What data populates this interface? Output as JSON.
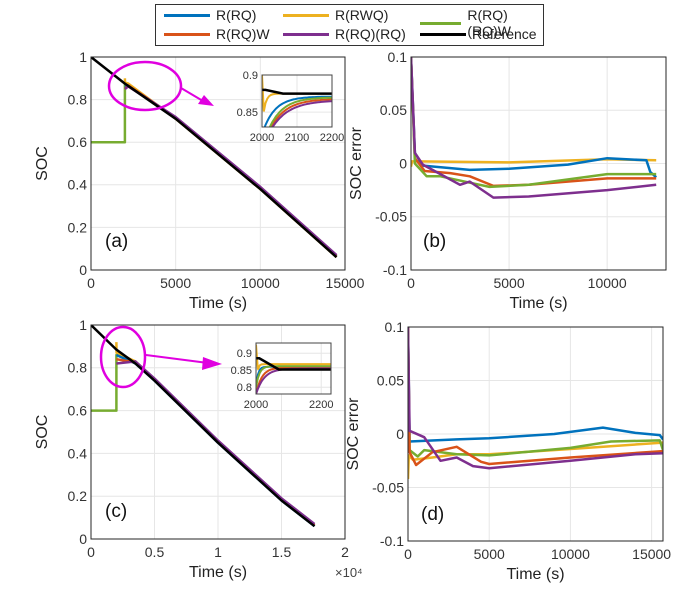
{
  "legend": {
    "items": [
      {
        "label": "R(RQ)",
        "color": "#0072BD"
      },
      {
        "label": "R(RWQ)",
        "color": "#EDB120"
      },
      {
        "label": "R(RQ)(RQ)W",
        "color": "#77AC30"
      },
      {
        "label": "R(RQ)W",
        "color": "#D95319"
      },
      {
        "label": "R(RQ)(RQ)",
        "color": "#7E2F8E"
      },
      {
        "label": "Reference",
        "color": "#000000"
      }
    ]
  },
  "annotation_color": "#E000E0",
  "chart_data": [
    {
      "id": "a",
      "type": "line",
      "panel_label": "(a)",
      "xlabel": "Time (s)",
      "ylabel": "SOC",
      "xlim": [
        0,
        15000
      ],
      "ylim": [
        0,
        1
      ],
      "xticks": [
        0,
        5000,
        10000,
        15000
      ],
      "xtick_labels": [
        "0",
        "5000",
        "10000",
        "15000"
      ],
      "yticks": [
        0,
        0.2,
        0.4,
        0.6,
        0.8,
        1
      ],
      "ytick_labels": [
        "0",
        "0.2",
        "0.4",
        "0.6",
        "0.8",
        "1"
      ],
      "grid": true,
      "series": [
        {
          "name": "Reference",
          "x": [
            0,
            2000,
            5000,
            10000,
            14500
          ],
          "y": [
            1.0,
            0.875,
            0.71,
            0.38,
            0.06
          ]
        },
        {
          "name": "R(RQ)(RQ)W",
          "x": [
            0,
            2000,
            2001,
            2200,
            5000,
            10000,
            14500
          ],
          "y": [
            0.6,
            0.6,
            0.87,
            0.865,
            0.715,
            0.385,
            0.065
          ]
        },
        {
          "name": "R(RQ)",
          "x": [
            2000,
            2200,
            5000,
            10000,
            14500
          ],
          "y": [
            0.86,
            0.866,
            0.714,
            0.384,
            0.064
          ]
        },
        {
          "name": "R(RWQ)",
          "x": [
            2000,
            2010,
            2200,
            5000,
            10000,
            14500
          ],
          "y": [
            0.9,
            0.88,
            0.875,
            0.71,
            0.38,
            0.06
          ]
        },
        {
          "name": "R(RQ)W",
          "x": [
            2000,
            2200,
            5000,
            10000,
            14500
          ],
          "y": [
            0.85,
            0.866,
            0.716,
            0.386,
            0.066
          ]
        },
        {
          "name": "R(RQ)(RQ)",
          "x": [
            2000,
            2200,
            5000,
            10000,
            14500
          ],
          "y": [
            0.85,
            0.862,
            0.718,
            0.39,
            0.07
          ]
        }
      ],
      "inset": {
        "xlim": [
          2000,
          2200
        ],
        "ylim": [
          0.83,
          0.9
        ],
        "xticks": [
          2000,
          2100,
          2200
        ],
        "xtick_labels": [
          "2000",
          "2100",
          "2200"
        ],
        "yticks": [
          0.85,
          0.9
        ],
        "ytick_labels": [
          "0.85",
          "0.9"
        ]
      }
    },
    {
      "id": "b",
      "type": "line",
      "panel_label": "(b)",
      "xlabel": "Time (s)",
      "ylabel": "SOC error",
      "xlim": [
        0,
        13000
      ],
      "ylim": [
        -0.1,
        0.1
      ],
      "xticks": [
        0,
        5000,
        10000
      ],
      "xtick_labels": [
        "0",
        "5000",
        "10000"
      ],
      "yticks": [
        -0.1,
        -0.05,
        0,
        0.05,
        0.1
      ],
      "ytick_labels": [
        "-0.1",
        "-0.05",
        "0",
        "0.05",
        "0.1"
      ],
      "grid": true,
      "series": [
        {
          "name": "R(RWQ)",
          "x": [
            0,
            50,
            300,
            5000,
            10000,
            12500
          ],
          "y": [
            -0.003,
            0.002,
            0.002,
            0.001,
            0.004,
            0.003
          ]
        },
        {
          "name": "R(RQ)",
          "x": [
            0,
            200,
            600,
            3000,
            5000,
            8000,
            10000,
            12000,
            12200,
            12500
          ],
          "y": [
            0.1,
            0.01,
            -0.002,
            -0.006,
            -0.005,
            -0.001,
            0.005,
            0.003,
            -0.008,
            -0.013
          ]
        },
        {
          "name": "R(RQ)W",
          "x": [
            0,
            200,
            700,
            2000,
            3000,
            4200,
            6000,
            10000,
            12500
          ],
          "y": [
            0.1,
            0.005,
            -0.007,
            -0.009,
            -0.012,
            -0.021,
            -0.02,
            -0.014,
            -0.014
          ]
        },
        {
          "name": "R(RQ)(RQ)W",
          "x": [
            0,
            200,
            800,
            1500,
            3000,
            4000,
            6000,
            10000,
            12500
          ],
          "y": [
            0.1,
            0.0,
            -0.012,
            -0.012,
            -0.018,
            -0.022,
            -0.02,
            -0.01,
            -0.01
          ]
        },
        {
          "name": "R(RQ)(RQ)",
          "x": [
            0,
            200,
            600,
            1500,
            2500,
            3000,
            4200,
            6000,
            10000,
            12500
          ],
          "y": [
            0.1,
            0.01,
            -0.001,
            -0.01,
            -0.02,
            -0.017,
            -0.032,
            -0.031,
            -0.025,
            -0.02
          ]
        }
      ]
    },
    {
      "id": "c",
      "type": "line",
      "panel_label": "(c)",
      "xlabel": "Time (s)",
      "ylabel": "SOC",
      "x_exponent_label": "×10⁴",
      "xlim": [
        0,
        20000
      ],
      "ylim": [
        0,
        1
      ],
      "xticks": [
        0,
        5000,
        10000,
        15000,
        20000
      ],
      "xtick_labels": [
        "0",
        "0.5",
        "1",
        "1.5",
        "2"
      ],
      "yticks": [
        0,
        0.2,
        0.4,
        0.6,
        0.8,
        1
      ],
      "ytick_labels": [
        "0",
        "0.2",
        "0.4",
        "0.6",
        "0.8",
        "1"
      ],
      "grid": true,
      "series": [
        {
          "name": "Reference",
          "x": [
            0,
            2000,
            3500,
            5000,
            10000,
            15000,
            17600
          ],
          "y": [
            1.0,
            0.885,
            0.82,
            0.74,
            0.45,
            0.18,
            0.06
          ]
        },
        {
          "name": "R(RQ)(RQ)W",
          "x": [
            0,
            2000,
            2001,
            3500,
            5000,
            10000,
            15000,
            17600
          ],
          "y": [
            0.6,
            0.6,
            0.86,
            0.825,
            0.745,
            0.455,
            0.185,
            0.065
          ]
        },
        {
          "name": "R(RWQ)",
          "x": [
            2000,
            2010,
            3500,
            5000,
            10000,
            15000,
            17600
          ],
          "y": [
            0.92,
            0.87,
            0.83,
            0.745,
            0.455,
            0.185,
            0.065
          ]
        },
        {
          "name": "R(RQ)",
          "x": [
            2000,
            3500,
            5000,
            10000,
            15000,
            17600
          ],
          "y": [
            0.86,
            0.82,
            0.74,
            0.45,
            0.18,
            0.06
          ]
        },
        {
          "name": "R(RQ)W",
          "x": [
            2000,
            3500,
            5000,
            10000,
            15000,
            17600
          ],
          "y": [
            0.84,
            0.825,
            0.745,
            0.455,
            0.185,
            0.065
          ]
        },
        {
          "name": "R(RQ)(RQ)",
          "x": [
            2000,
            3500,
            5000,
            10000,
            15000,
            17600
          ],
          "y": [
            0.82,
            0.83,
            0.75,
            0.46,
            0.19,
            0.07
          ]
        }
      ],
      "inset": {
        "xlim": [
          2000,
          2230
        ],
        "ylim": [
          0.78,
          0.93
        ],
        "xticks": [
          2000,
          2200
        ],
        "xtick_labels": [
          "2000",
          "2200"
        ],
        "yticks": [
          0.8,
          0.85,
          0.9
        ],
        "ytick_labels": [
          "0.8",
          "0.85",
          "0.9"
        ]
      }
    },
    {
      "id": "d",
      "type": "line",
      "panel_label": "(d)",
      "xlabel": "Time (s)",
      "ylabel": "SOC error",
      "xlim": [
        0,
        15700
      ],
      "ylim": [
        -0.1,
        0.1
      ],
      "xticks": [
        0,
        5000,
        10000,
        15000
      ],
      "xtick_labels": [
        "0",
        "5000",
        "10000",
        "15000"
      ],
      "yticks": [
        -0.1,
        -0.05,
        0,
        0.05,
        0.1
      ],
      "ytick_labels": [
        "-0.1",
        "-0.05",
        "0",
        "0.05",
        "0.1"
      ],
      "grid": true,
      "series": [
        {
          "name": "R(RQ)",
          "x": [
            0,
            100,
            3000,
            5000,
            9000,
            12000,
            14000,
            15500,
            15700
          ],
          "y": [
            0.1,
            -0.007,
            -0.005,
            -0.004,
            0.0,
            0.006,
            0.001,
            -0.001,
            -0.005
          ]
        },
        {
          "name": "R(RWQ)",
          "x": [
            0,
            50,
            300,
            1500,
            3000,
            5000,
            10000,
            15700
          ],
          "y": [
            -0.042,
            -0.02,
            -0.024,
            -0.022,
            -0.019,
            -0.019,
            -0.014,
            -0.008
          ]
        },
        {
          "name": "R(RQ)(RQ)W",
          "x": [
            0,
            100,
            600,
            1000,
            3000,
            5000,
            10000,
            12500,
            15500,
            15700
          ],
          "y": [
            0.1,
            -0.015,
            -0.021,
            -0.015,
            -0.019,
            -0.02,
            -0.013,
            -0.007,
            -0.006,
            -0.015
          ]
        },
        {
          "name": "R(RQ)W",
          "x": [
            0,
            100,
            500,
            1500,
            3000,
            4500,
            5000,
            10000,
            15700
          ],
          "y": [
            0.1,
            -0.017,
            -0.029,
            -0.017,
            -0.012,
            -0.026,
            -0.028,
            -0.022,
            -0.016
          ]
        },
        {
          "name": "R(RQ)(RQ)",
          "x": [
            0,
            100,
            1000,
            2000,
            3000,
            4000,
            5000,
            10000,
            14000,
            15700
          ],
          "y": [
            0.1,
            0.003,
            -0.003,
            -0.025,
            -0.022,
            -0.03,
            -0.032,
            -0.025,
            -0.019,
            -0.018
          ]
        }
      ]
    }
  ]
}
